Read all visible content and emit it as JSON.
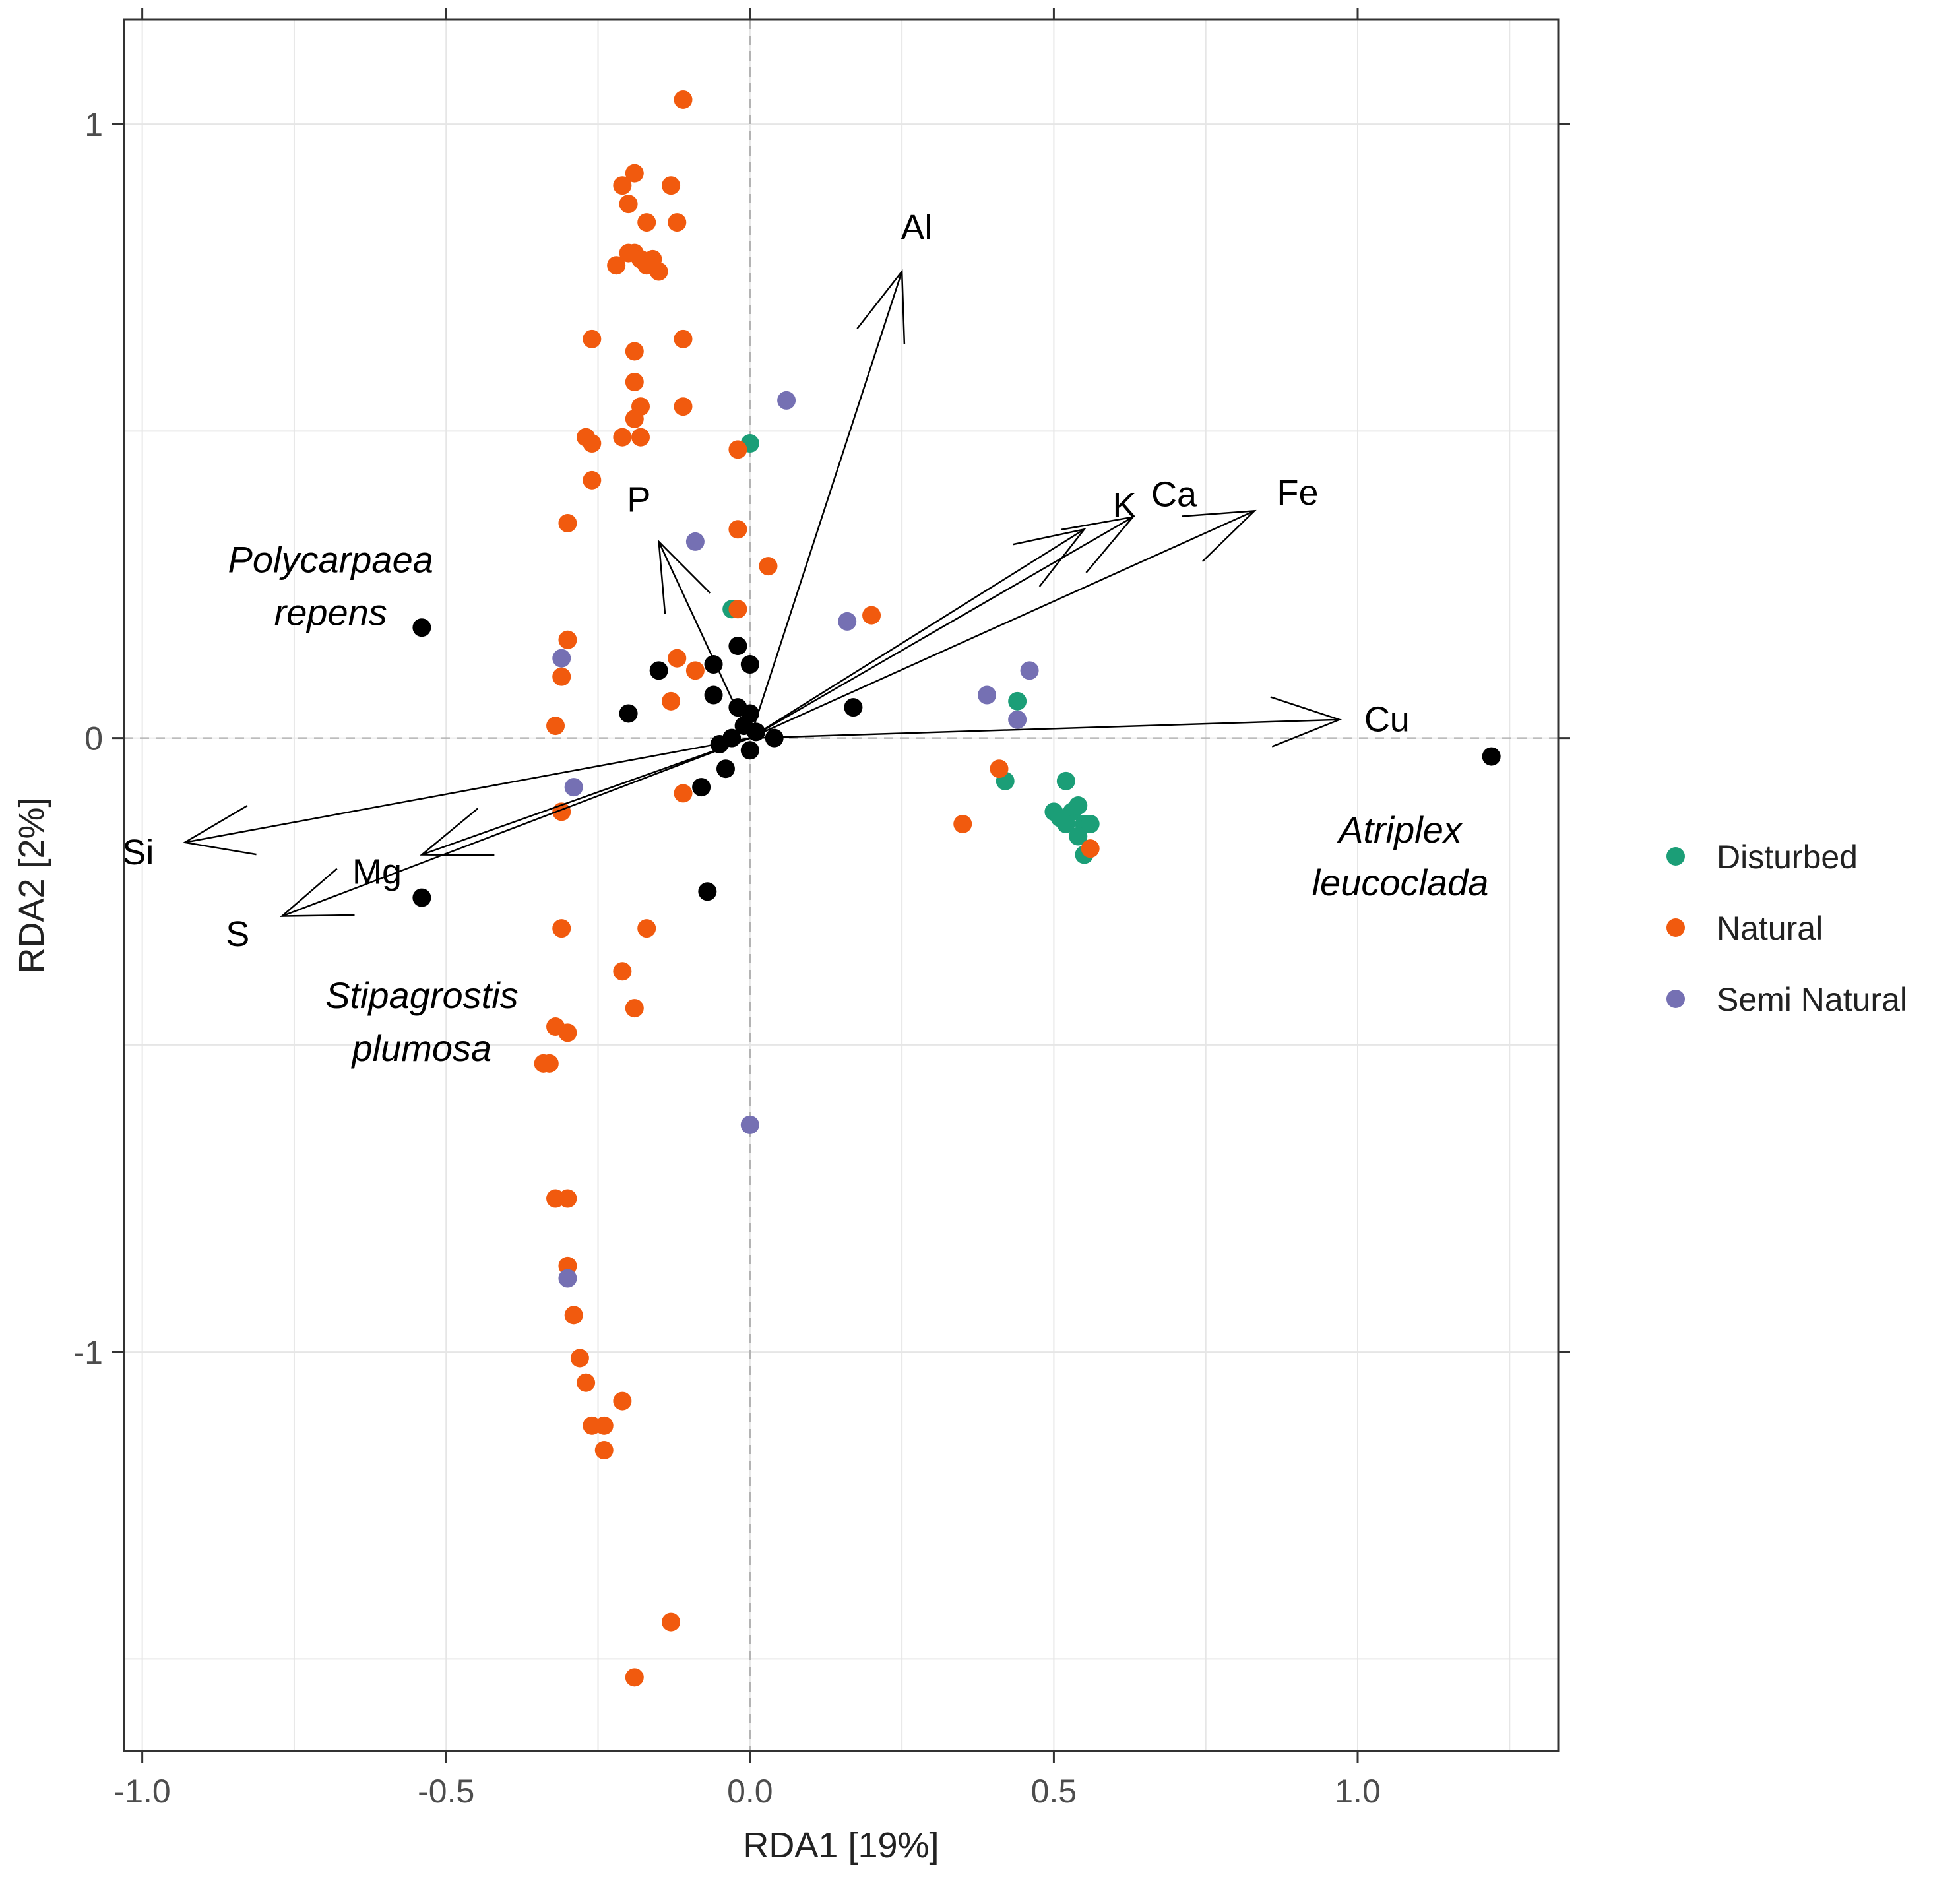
{
  "chart_data": {
    "type": "scatter",
    "title": "",
    "xlabel": "RDA1 [19%]",
    "ylabel": "RDA2 [2%]",
    "xlim": [
      -1.03,
      1.33
    ],
    "ylim": [
      -1.65,
      1.17
    ],
    "x_ticks": [
      -1.0,
      -0.5,
      0.0,
      0.5,
      1.0
    ],
    "x_tick_labels": [
      "-1.0",
      "-0.5",
      "0.0",
      "0.5",
      "1.0"
    ],
    "y_ticks": [
      -1,
      0,
      1
    ],
    "y_tick_labels": [
      "-1",
      "0",
      "1"
    ],
    "grid": true,
    "zero_lines": true,
    "legend": {
      "placement": "right",
      "entries": [
        {
          "name": "Disturbed",
          "color": "#1b9e77"
        },
        {
          "name": "Natural",
          "color": "#f15a0e"
        },
        {
          "name": "Semi Natural",
          "color": "#7570b3"
        }
      ]
    },
    "series": [
      {
        "name": "Disturbed",
        "color": "#1b9e77",
        "points": [
          [
            0.0,
            0.48
          ],
          [
            -0.03,
            0.21
          ],
          [
            0.44,
            0.06
          ],
          [
            0.42,
            -0.07
          ],
          [
            0.52,
            -0.07
          ],
          [
            0.5,
            -0.12
          ],
          [
            0.51,
            -0.13
          ],
          [
            0.53,
            -0.12
          ],
          [
            0.54,
            -0.11
          ],
          [
            0.52,
            -0.14
          ],
          [
            0.55,
            -0.14
          ],
          [
            0.56,
            -0.14
          ],
          [
            0.54,
            -0.16
          ],
          [
            0.55,
            -0.19
          ]
        ]
      },
      {
        "name": "Natural",
        "color": "#f15a0e",
        "points": [
          [
            -0.11,
            1.04
          ],
          [
            -0.21,
            0.9
          ],
          [
            -0.19,
            0.92
          ],
          [
            -0.13,
            0.9
          ],
          [
            -0.2,
            0.87
          ],
          [
            -0.17,
            0.84
          ],
          [
            -0.12,
            0.84
          ],
          [
            -0.2,
            0.79
          ],
          [
            -0.19,
            0.79
          ],
          [
            -0.18,
            0.78
          ],
          [
            -0.16,
            0.78
          ],
          [
            -0.22,
            0.77
          ],
          [
            -0.15,
            0.76
          ],
          [
            -0.17,
            0.77
          ],
          [
            -0.26,
            0.65
          ],
          [
            -0.19,
            0.63
          ],
          [
            -0.11,
            0.65
          ],
          [
            -0.19,
            0.58
          ],
          [
            -0.18,
            0.54
          ],
          [
            -0.19,
            0.52
          ],
          [
            -0.11,
            0.54
          ],
          [
            -0.27,
            0.49
          ],
          [
            -0.26,
            0.48
          ],
          [
            -0.21,
            0.49
          ],
          [
            -0.18,
            0.49
          ],
          [
            -0.02,
            0.47
          ],
          [
            -0.26,
            0.42
          ],
          [
            -0.3,
            0.35
          ],
          [
            -0.02,
            0.34
          ],
          [
            0.03,
            0.28
          ],
          [
            -0.02,
            0.21
          ],
          [
            0.2,
            0.2
          ],
          [
            -0.3,
            0.16
          ],
          [
            -0.31,
            0.1
          ],
          [
            -0.12,
            0.13
          ],
          [
            -0.09,
            0.11
          ],
          [
            -0.13,
            0.06
          ],
          [
            -0.32,
            0.02
          ],
          [
            0.41,
            -0.05
          ],
          [
            -0.11,
            -0.09
          ],
          [
            0.35,
            -0.14
          ],
          [
            0.56,
            -0.18
          ],
          [
            -0.31,
            -0.12
          ],
          [
            -0.31,
            -0.31
          ],
          [
            -0.17,
            -0.31
          ],
          [
            -0.21,
            -0.38
          ],
          [
            -0.19,
            -0.44
          ],
          [
            -0.32,
            -0.47
          ],
          [
            -0.3,
            -0.48
          ],
          [
            -0.33,
            -0.53
          ],
          [
            -0.34,
            -0.53
          ],
          [
            -0.32,
            -0.75
          ],
          [
            -0.3,
            -0.75
          ],
          [
            -0.3,
            -0.86
          ],
          [
            -0.29,
            -0.94
          ],
          [
            -0.28,
            -1.01
          ],
          [
            -0.27,
            -1.05
          ],
          [
            -0.21,
            -1.08
          ],
          [
            -0.26,
            -1.12
          ],
          [
            -0.24,
            -1.12
          ],
          [
            -0.24,
            -1.16
          ],
          [
            -0.13,
            -1.44
          ],
          [
            -0.19,
            -1.53
          ]
        ]
      },
      {
        "name": "Semi Natural",
        "color": "#7570b3",
        "points": [
          [
            0.06,
            0.55
          ],
          [
            -0.09,
            0.32
          ],
          [
            0.16,
            0.19
          ],
          [
            -0.31,
            0.13
          ],
          [
            0.46,
            0.11
          ],
          [
            0.39,
            0.07
          ],
          [
            0.44,
            0.03
          ],
          [
            -0.29,
            -0.08
          ],
          [
            0.0,
            -0.63
          ],
          [
            -0.3,
            -0.88
          ]
        ]
      },
      {
        "name": "",
        "color": "#000000",
        "points": [
          [
            -0.54,
            0.18
          ],
          [
            0.0,
            0.12
          ],
          [
            -0.02,
            0.15
          ],
          [
            -0.06,
            0.12
          ],
          [
            -0.15,
            0.11
          ],
          [
            -0.06,
            0.07
          ],
          [
            -0.2,
            0.04
          ],
          [
            0.17,
            0.05
          ],
          [
            -0.02,
            0.05
          ],
          [
            0.0,
            0.04
          ],
          [
            -0.01,
            0.02
          ],
          [
            0.01,
            0.01
          ],
          [
            -0.03,
            0.0
          ],
          [
            0.04,
            0.0
          ],
          [
            -0.05,
            -0.01
          ],
          [
            0.0,
            -0.02
          ],
          [
            -0.04,
            -0.05
          ],
          [
            -0.08,
            -0.08
          ],
          [
            -0.54,
            -0.26
          ],
          [
            -0.07,
            -0.25
          ],
          [
            1.22,
            -0.03
          ]
        ]
      }
    ],
    "arrows": [
      {
        "label": "Al",
        "x": 0.25,
        "y": 0.76
      },
      {
        "label": "K",
        "x": 0.55,
        "y": 0.34
      },
      {
        "label": "Ca",
        "x": 0.63,
        "y": 0.36
      },
      {
        "label": "Fe",
        "x": 0.83,
        "y": 0.37
      },
      {
        "label": "Cu",
        "x": 0.97,
        "y": 0.03
      },
      {
        "label": "P",
        "x": -0.15,
        "y": 0.32
      },
      {
        "label": "Mg",
        "x": -0.54,
        "y": -0.19
      },
      {
        "label": "Si",
        "x": -0.93,
        "y": -0.17
      },
      {
        "label": "S",
        "x": -0.77,
        "y": -0.29
      }
    ],
    "species_labels": [
      {
        "lines": [
          "Polycarpaea",
          "repens"
        ],
        "x": -0.69,
        "y": 0.27
      },
      {
        "lines": [
          "Atriplex",
          "leucocladа"
        ],
        "x": 1.07,
        "y": -0.17
      },
      {
        "lines": [
          "Stipagrostis",
          "plumosa"
        ],
        "x": -0.54,
        "y": -0.44
      }
    ]
  }
}
